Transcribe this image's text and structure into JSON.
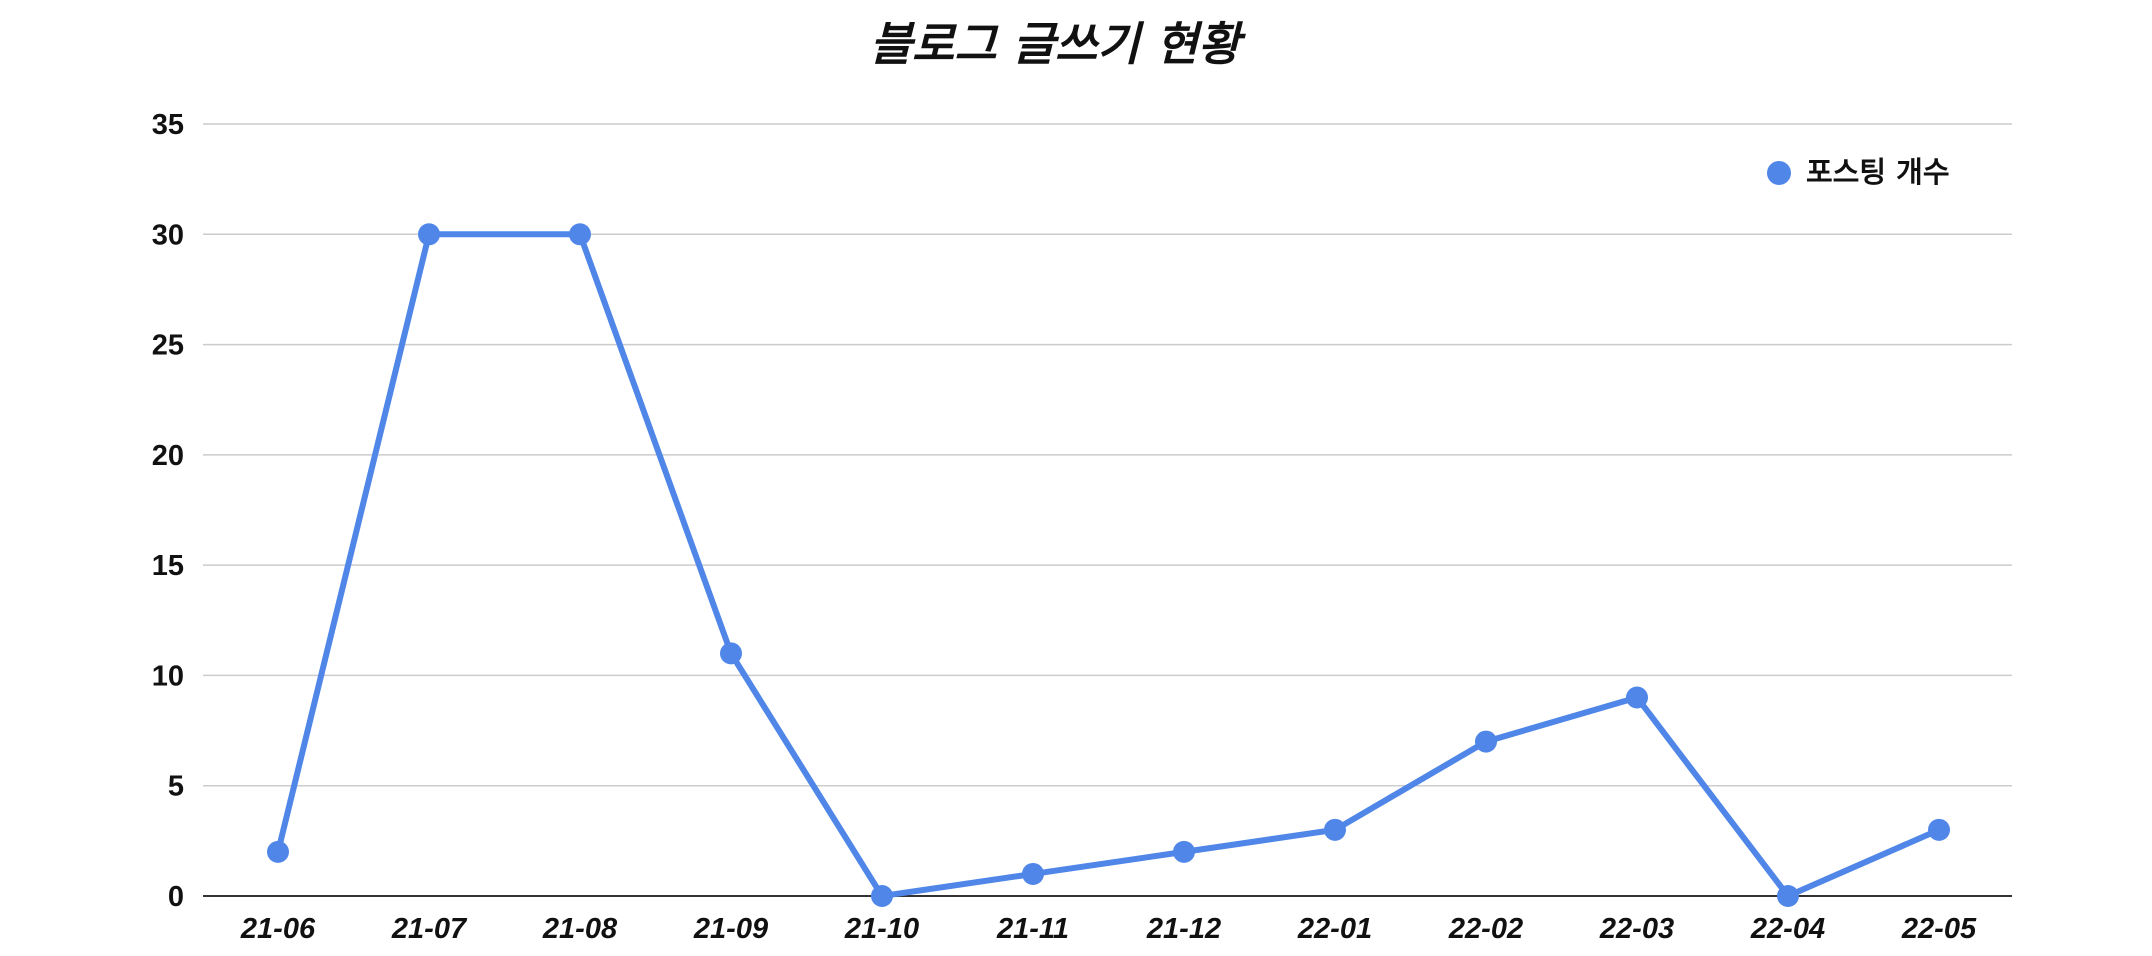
{
  "chart_data": {
    "type": "line",
    "title": "블로그 글쓰기 현황",
    "xlabel": "",
    "ylabel": "",
    "categories": [
      "21-06",
      "21-07",
      "21-08",
      "21-09",
      "21-10",
      "21-11",
      "21-12",
      "22-01",
      "22-02",
      "22-03",
      "22-04",
      "22-05"
    ],
    "series": [
      {
        "name": "포스팅 개수",
        "values": [
          2,
          30,
          30,
          11,
          0,
          1,
          2,
          3,
          7,
          9,
          0,
          3
        ],
        "color": "#4f86e8"
      }
    ],
    "ylim": [
      0,
      35
    ],
    "yticks": [
      0,
      5,
      10,
      15,
      20,
      25,
      30,
      35
    ],
    "grid": true,
    "legend_position": "top-right"
  }
}
